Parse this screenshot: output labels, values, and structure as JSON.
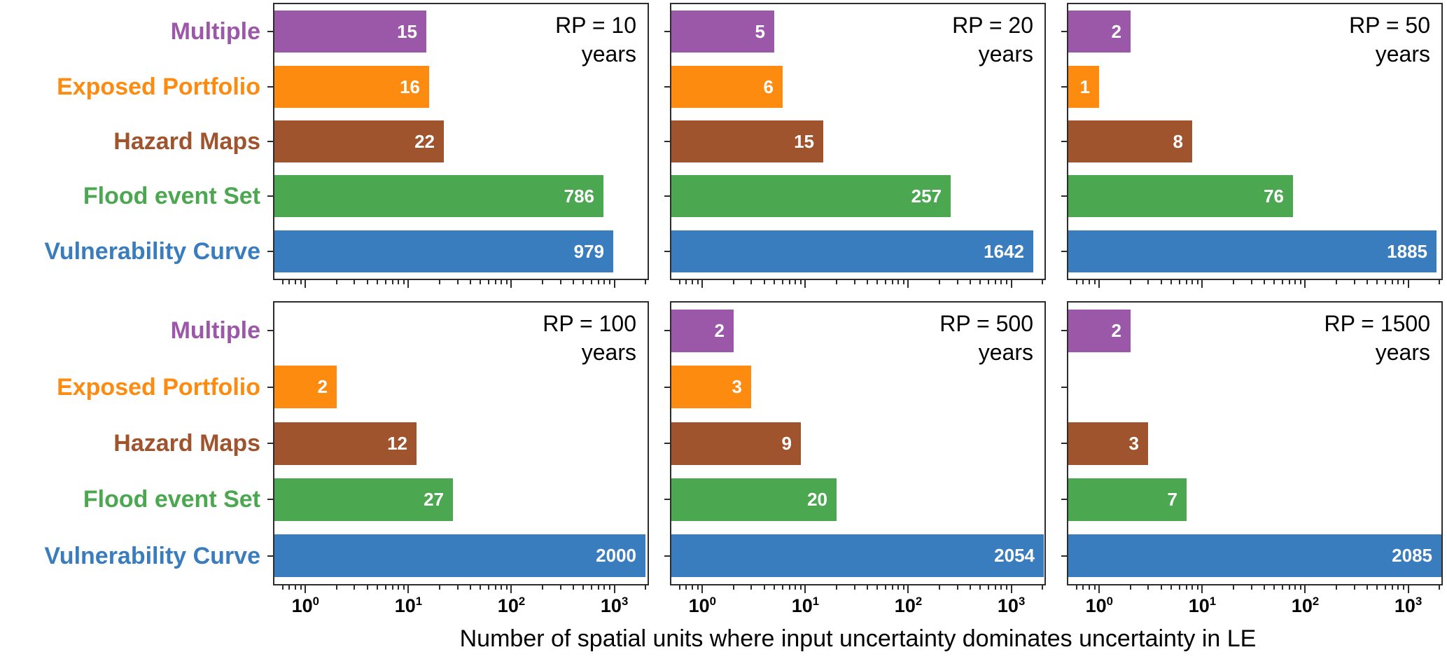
{
  "chart_data": {
    "type": "bar",
    "orientation": "horizontal",
    "xscale": "log",
    "xlim": [
      0.5,
      2100
    ],
    "grid": false,
    "xlabel": "Number of spatial units where input uncertainty dominates uncertainty in LE",
    "xticks": [
      1,
      10,
      100,
      1000
    ],
    "xtick_base": "10",
    "xtick_exps": [
      "0",
      "1",
      "2",
      "3"
    ],
    "categories": [
      "Multiple",
      "Exposed Portfolio",
      "Hazard Maps",
      "Flood event Set",
      "Vulnerability Curve"
    ],
    "category_colors": [
      "#9c58a8",
      "#fd8b0f",
      "#a0542e",
      "#4ca850",
      "#3a7dbe"
    ],
    "value_label_color": "#ffffff",
    "subplots": [
      {
        "rp_label": "RP = 10",
        "years_label": "years",
        "values": [
          15,
          16,
          22,
          786,
          979
        ]
      },
      {
        "rp_label": "RP = 20",
        "years_label": "years",
        "values": [
          5,
          6,
          15,
          257,
          1642
        ]
      },
      {
        "rp_label": "RP = 50",
        "years_label": "years",
        "values": [
          2,
          1,
          8,
          76,
          1885
        ]
      },
      {
        "rp_label": "RP = 100",
        "years_label": "years",
        "values": [
          0,
          2,
          12,
          27,
          2000
        ]
      },
      {
        "rp_label": "RP = 500",
        "years_label": "years",
        "values": [
          2,
          3,
          9,
          20,
          2054
        ]
      },
      {
        "rp_label": "RP = 1500",
        "years_label": "years",
        "values": [
          2,
          0,
          3,
          7,
          2085
        ]
      }
    ]
  }
}
